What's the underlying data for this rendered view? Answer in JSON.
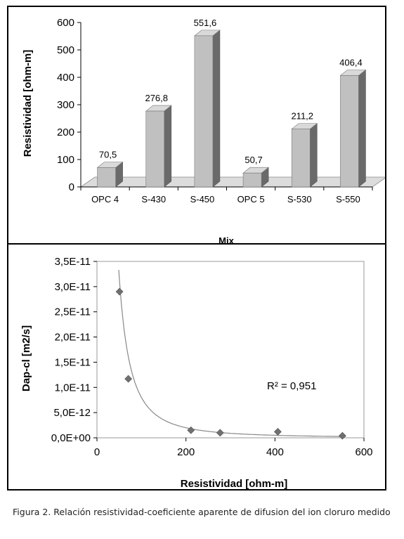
{
  "chart_data": [
    {
      "type": "bar",
      "title": "",
      "xlabel": "Mix",
      "ylabel": "Resistividad [ohm-m]",
      "categories": [
        "OPC 4",
        "S-430",
        "S-450",
        "OPC 5",
        "S-530",
        "S-550"
      ],
      "values": [
        70.5,
        276.8,
        551.6,
        50.7,
        211.2,
        406.4
      ],
      "value_labels": [
        "70,5",
        "276,8",
        "551,6",
        "50,7",
        "211,2",
        "406,4"
      ],
      "ylim": [
        0,
        600
      ],
      "yticks": [
        "0",
        "100",
        "200",
        "300",
        "400",
        "500",
        "600"
      ],
      "bar_color": "#c0c0c0",
      "grid": false,
      "style": "3d-column"
    },
    {
      "type": "scatter",
      "title": "",
      "xlabel": "Resistividad [ohm-m]",
      "ylabel": "Dap-cl [m2/s]",
      "points": [
        {
          "x": 50.7,
          "y": 2.9e-11
        },
        {
          "x": 70.5,
          "y": 1.17e-11
        },
        {
          "x": 211.2,
          "y": 1.5e-12
        },
        {
          "x": 276.8,
          "y": 1e-12
        },
        {
          "x": 406.4,
          "y": 1.2e-12
        },
        {
          "x": 551.6,
          "y": 4e-13
        }
      ],
      "trendline": {
        "type": "power",
        "a": 8e-08,
        "b": -2.0
      },
      "annotation": "R² = 0,951",
      "xlim": [
        0,
        600
      ],
      "ylim": [
        0,
        3.5e-11
      ],
      "xticks": [
        "0",
        "200",
        "400",
        "600"
      ],
      "yticks": [
        "0,0E+00",
        "5,0E-12",
        "1,0E-11",
        "1,5E-11",
        "2,0E-11",
        "2,5E-11",
        "3,0E-11",
        "3,5E-11"
      ],
      "marker_color": "#707070",
      "grid": false
    }
  ],
  "caption": "Figura 2. Relación resistividad-coeficiente aparente de difusion del ion cloruro medido"
}
